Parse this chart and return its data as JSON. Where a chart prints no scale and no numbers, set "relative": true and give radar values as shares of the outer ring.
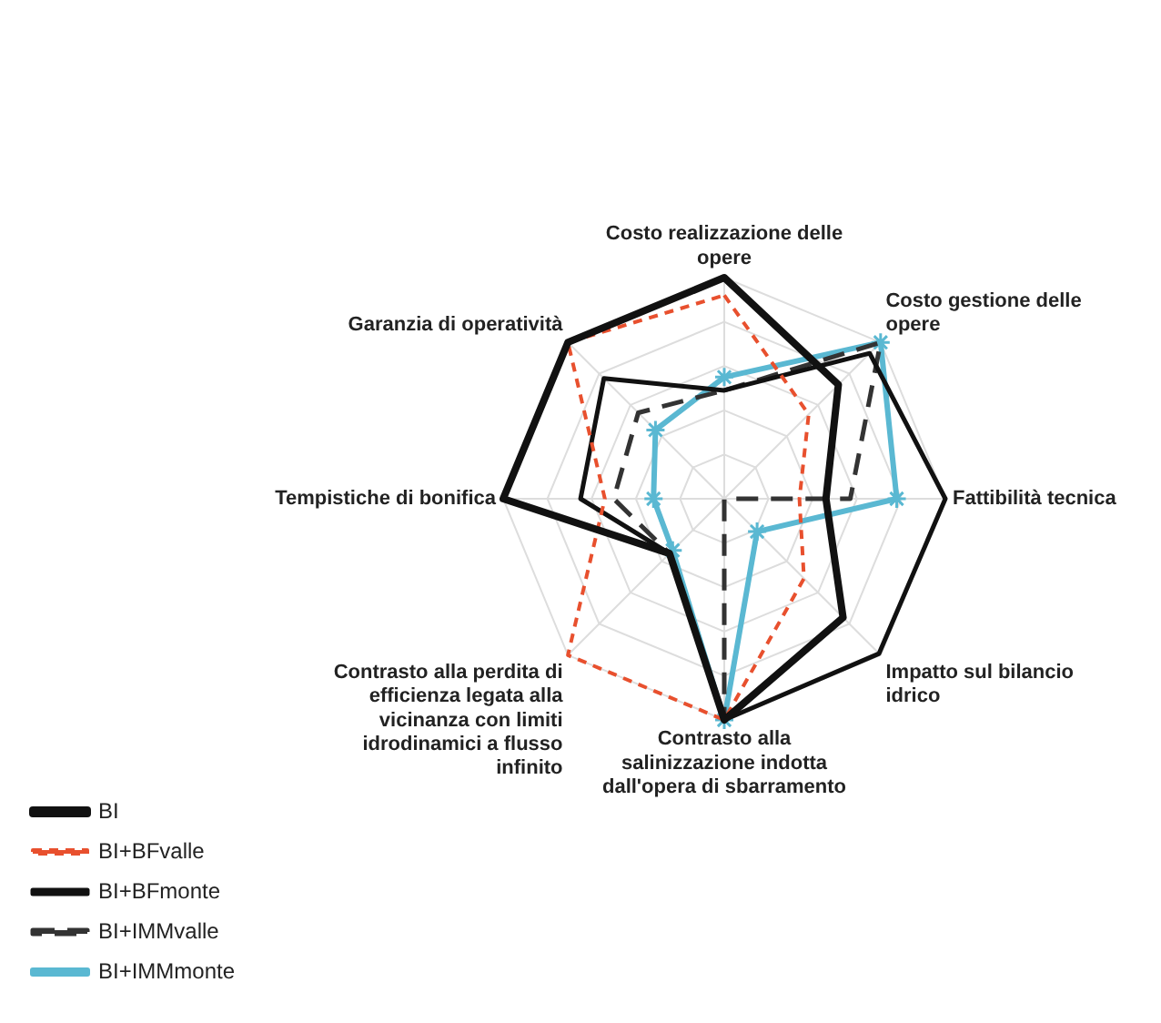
{
  "chart_data": {
    "type": "radar",
    "relative": true,
    "grid": true,
    "legend": "bottom left",
    "categories": [
      "Costo realizzazione delle opere",
      "Costo gestione delle opere",
      "Fattibilità tecnica",
      "Impatto sul bilancio idrico",
      "Contrasto alla salinizzazione indotta dall'opera di sbarramento",
      "Contrasto alla perdita di efficienza legata alla vicinanza con limiti idrodinamici a flusso infinito",
      "Tempistiche di bonifica",
      "Garanzia di operatività"
    ],
    "series": [
      {
        "name": "BI",
        "color": "#111111",
        "line_style": "solid",
        "marker": "none",
        "values": [
          1.0,
          0.73,
          0.46,
          0.76,
          1.0,
          0.35,
          1.0,
          1.0
        ]
      },
      {
        "name": "BI+BFvalle",
        "color": "#e8502e",
        "line_style": "dashed",
        "marker": "none",
        "values": [
          0.92,
          0.54,
          0.34,
          0.51,
          1.0,
          1.0,
          0.54,
          1.0
        ]
      },
      {
        "name": "BI+BFmonte",
        "color": "#111111",
        "line_style": "solid",
        "marker": "none",
        "values": [
          0.49,
          0.93,
          1.0,
          0.99,
          1.0,
          0.35,
          0.65,
          0.77
        ]
      },
      {
        "name": "BI+IMMvalle",
        "color": "#333333",
        "line_style": "dashed",
        "marker": "none",
        "values": [
          0.49,
          1.0,
          0.57,
          0,
          1.0,
          0.35,
          0.5,
          0.55
        ]
      },
      {
        "name": "BI+IMMmonte",
        "color": "#5ab8d2",
        "line_style": "solid",
        "marker": "cross",
        "values": [
          0.55,
          1.0,
          0.78,
          0.21,
          1.0,
          0.33,
          0.32,
          0.44
        ]
      }
    ]
  }
}
